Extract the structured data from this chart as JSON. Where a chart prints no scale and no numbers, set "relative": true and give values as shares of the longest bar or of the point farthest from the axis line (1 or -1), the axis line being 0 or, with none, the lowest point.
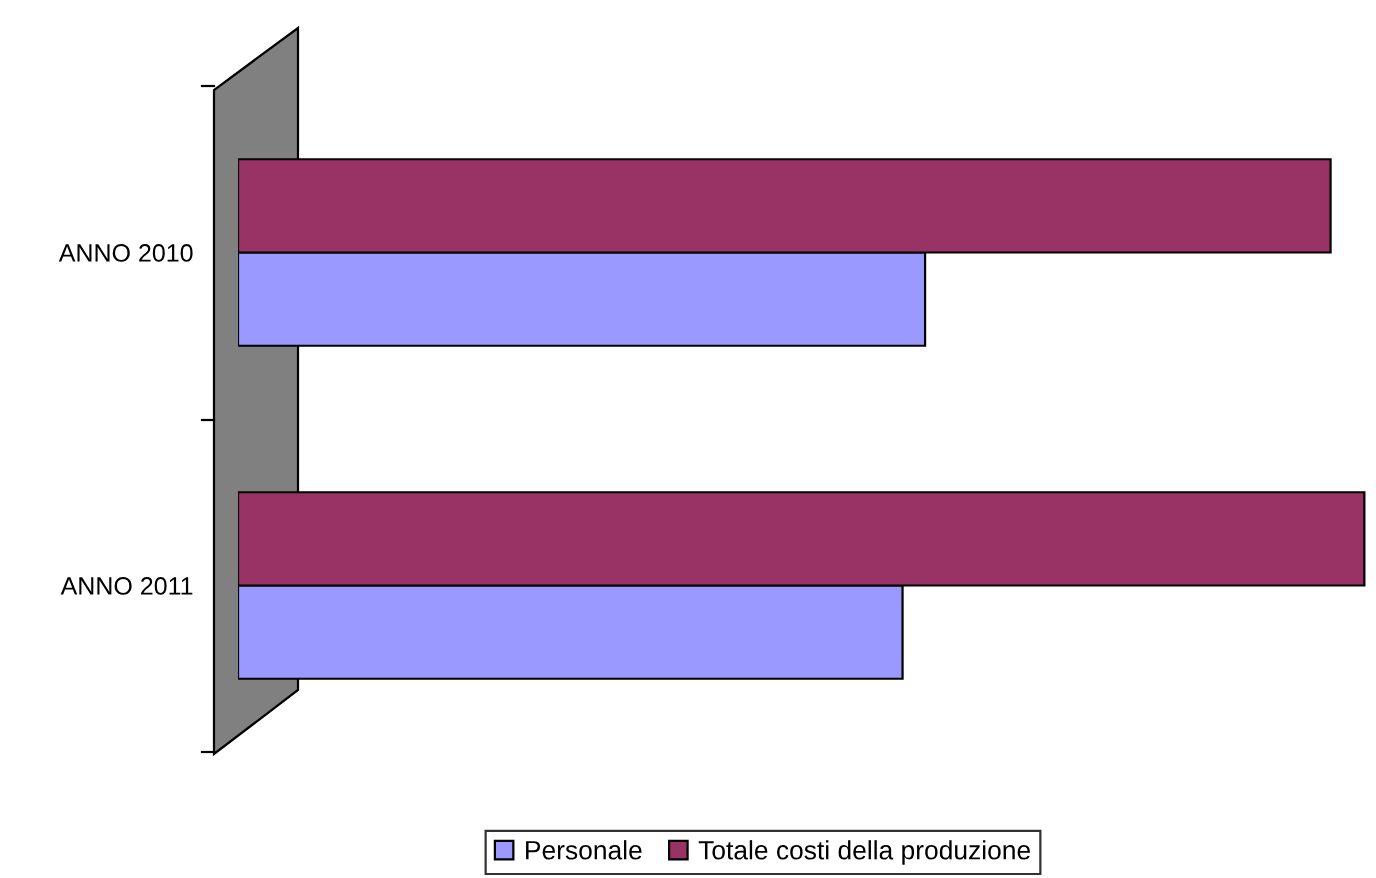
{
  "chart_data": {
    "type": "bar",
    "orientation": "horizontal",
    "relative": true,
    "categories": [
      "ANNO 2010",
      "ANNO 2011"
    ],
    "series": [
      {
        "name": "Personale",
        "color": "#9999ff",
        "values": [
          0.61,
          0.59
        ]
      },
      {
        "name": "Totale costi della produzione",
        "color": "#993366",
        "values": [
          0.97,
          1
        ]
      }
    ],
    "legend": "bottom",
    "grid": false
  }
}
